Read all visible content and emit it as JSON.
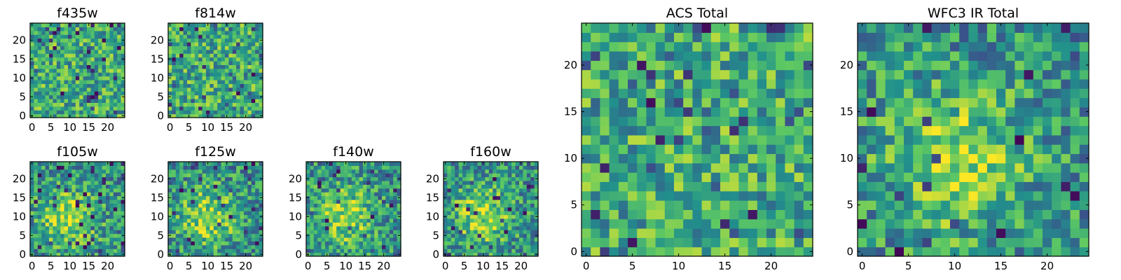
{
  "colors": {
    "colormap": [
      "#440154",
      "#3b528b",
      "#21918c",
      "#5ec962",
      "#fde725"
    ],
    "axes_edge": "#000000",
    "background": "#ffffff"
  },
  "chart_data": [
    {
      "type": "heatmap",
      "title": "f435w",
      "xlim": [
        0,
        24
      ],
      "ylim": [
        0,
        24
      ],
      "xticks": [
        0,
        5,
        10,
        15,
        20
      ],
      "yticks": [
        0,
        5,
        10,
        15,
        20
      ],
      "grid": false,
      "pattern": "noisy"
    },
    {
      "type": "heatmap",
      "title": "f814w",
      "xlim": [
        0,
        24
      ],
      "ylim": [
        0,
        24
      ],
      "xticks": [
        0,
        5,
        10,
        15,
        20
      ],
      "yticks": [
        0,
        5,
        10,
        15,
        20
      ],
      "grid": false,
      "pattern": "noisy"
    },
    {
      "type": "heatmap",
      "title": "f105w",
      "xlim": [
        0,
        24
      ],
      "ylim": [
        0,
        24
      ],
      "xticks": [
        0,
        5,
        10,
        15,
        20
      ],
      "yticks": [
        0,
        5,
        10,
        15,
        20
      ],
      "grid": false,
      "pattern": "central-source"
    },
    {
      "type": "heatmap",
      "title": "f125w",
      "xlim": [
        0,
        24
      ],
      "ylim": [
        0,
        24
      ],
      "xticks": [
        0,
        5,
        10,
        15,
        20
      ],
      "yticks": [
        0,
        5,
        10,
        15,
        20
      ],
      "grid": false,
      "pattern": "central-source"
    },
    {
      "type": "heatmap",
      "title": "f140w",
      "xlim": [
        0,
        24
      ],
      "ylim": [
        0,
        24
      ],
      "xticks": [
        0,
        5,
        10,
        15,
        20
      ],
      "yticks": [
        0,
        5,
        10,
        15,
        20
      ],
      "grid": false,
      "pattern": "central-source"
    },
    {
      "type": "heatmap",
      "title": "f160w",
      "xlim": [
        0,
        24
      ],
      "ylim": [
        0,
        24
      ],
      "xticks": [
        0,
        5,
        10,
        15,
        20
      ],
      "yticks": [
        0,
        5,
        10,
        15,
        20
      ],
      "grid": false,
      "pattern": "central-source"
    },
    {
      "type": "heatmap",
      "title": "ACS Total",
      "xlim": [
        0,
        24
      ],
      "ylim": [
        0,
        24
      ],
      "xticks": [
        0,
        5,
        10,
        15,
        20
      ],
      "yticks": [
        0,
        5,
        10,
        15,
        20
      ],
      "grid": false,
      "pattern": "noisy"
    },
    {
      "type": "heatmap",
      "title": "WFC3 IR Total",
      "xlim": [
        0,
        24
      ],
      "ylim": [
        0,
        24
      ],
      "xticks": [
        0,
        5,
        10,
        15,
        20
      ],
      "yticks": [
        0,
        5,
        10,
        15,
        20
      ],
      "grid": false,
      "pattern": "central-source"
    }
  ]
}
